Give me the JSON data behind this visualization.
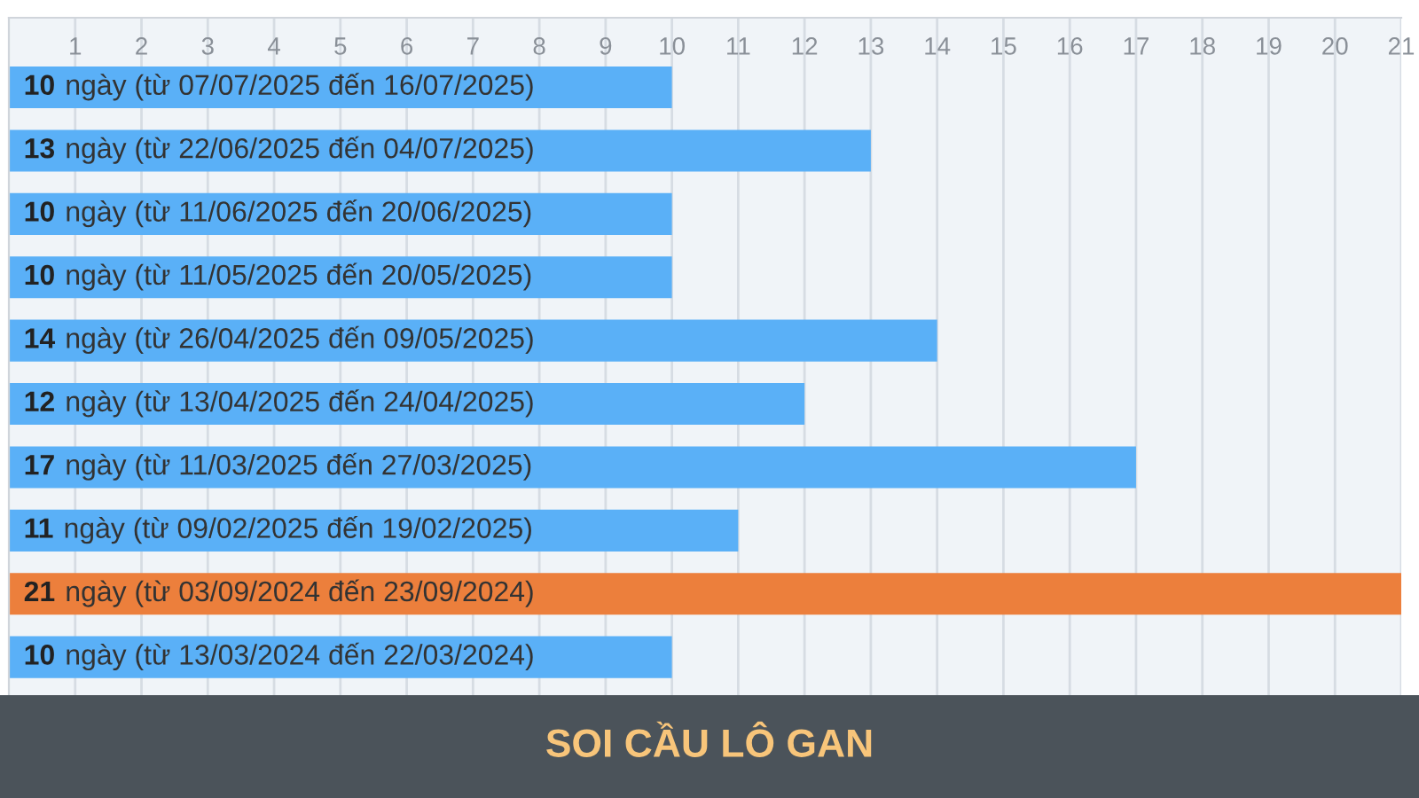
{
  "chart_data": {
    "type": "bar",
    "orientation": "horizontal",
    "title": "SOI CẦU LÔ GAN",
    "categories": [
      "10 ngày (từ 07/07/2025 đến 16/07/2025)",
      "13 ngày (từ 22/06/2025 đến 04/07/2025)",
      "10 ngày (từ 11/06/2025 đến 20/06/2025)",
      "10 ngày (từ 11/05/2025 đến 20/05/2025)",
      "14 ngày (từ 26/04/2025 đến 09/05/2025)",
      "12 ngày (từ 13/04/2025 đến 24/04/2025)",
      "17 ngày (từ 11/03/2025 đến 27/03/2025)",
      "11 ngày (từ 09/02/2025 đến 19/02/2025)",
      "21 ngày (từ 03/09/2024 đến 23/09/2024)",
      "10 ngày (từ 13/03/2024 đến 22/03/2024)"
    ],
    "values": [
      10,
      13,
      10,
      10,
      14,
      12,
      17,
      11,
      21,
      10
    ],
    "colors": [
      "#5ab0f7",
      "#5ab0f7",
      "#5ab0f7",
      "#5ab0f7",
      "#5ab0f7",
      "#5ab0f7",
      "#5ab0f7",
      "#5ab0f7",
      "#ec7f3c",
      "#5ab0f7"
    ],
    "xlim": [
      0,
      21
    ],
    "xticks": [
      1,
      2,
      3,
      4,
      5,
      6,
      7,
      8,
      9,
      10,
      11,
      12,
      13,
      14,
      15,
      16,
      17,
      18,
      19,
      20,
      21
    ],
    "grid": "x"
  }
}
